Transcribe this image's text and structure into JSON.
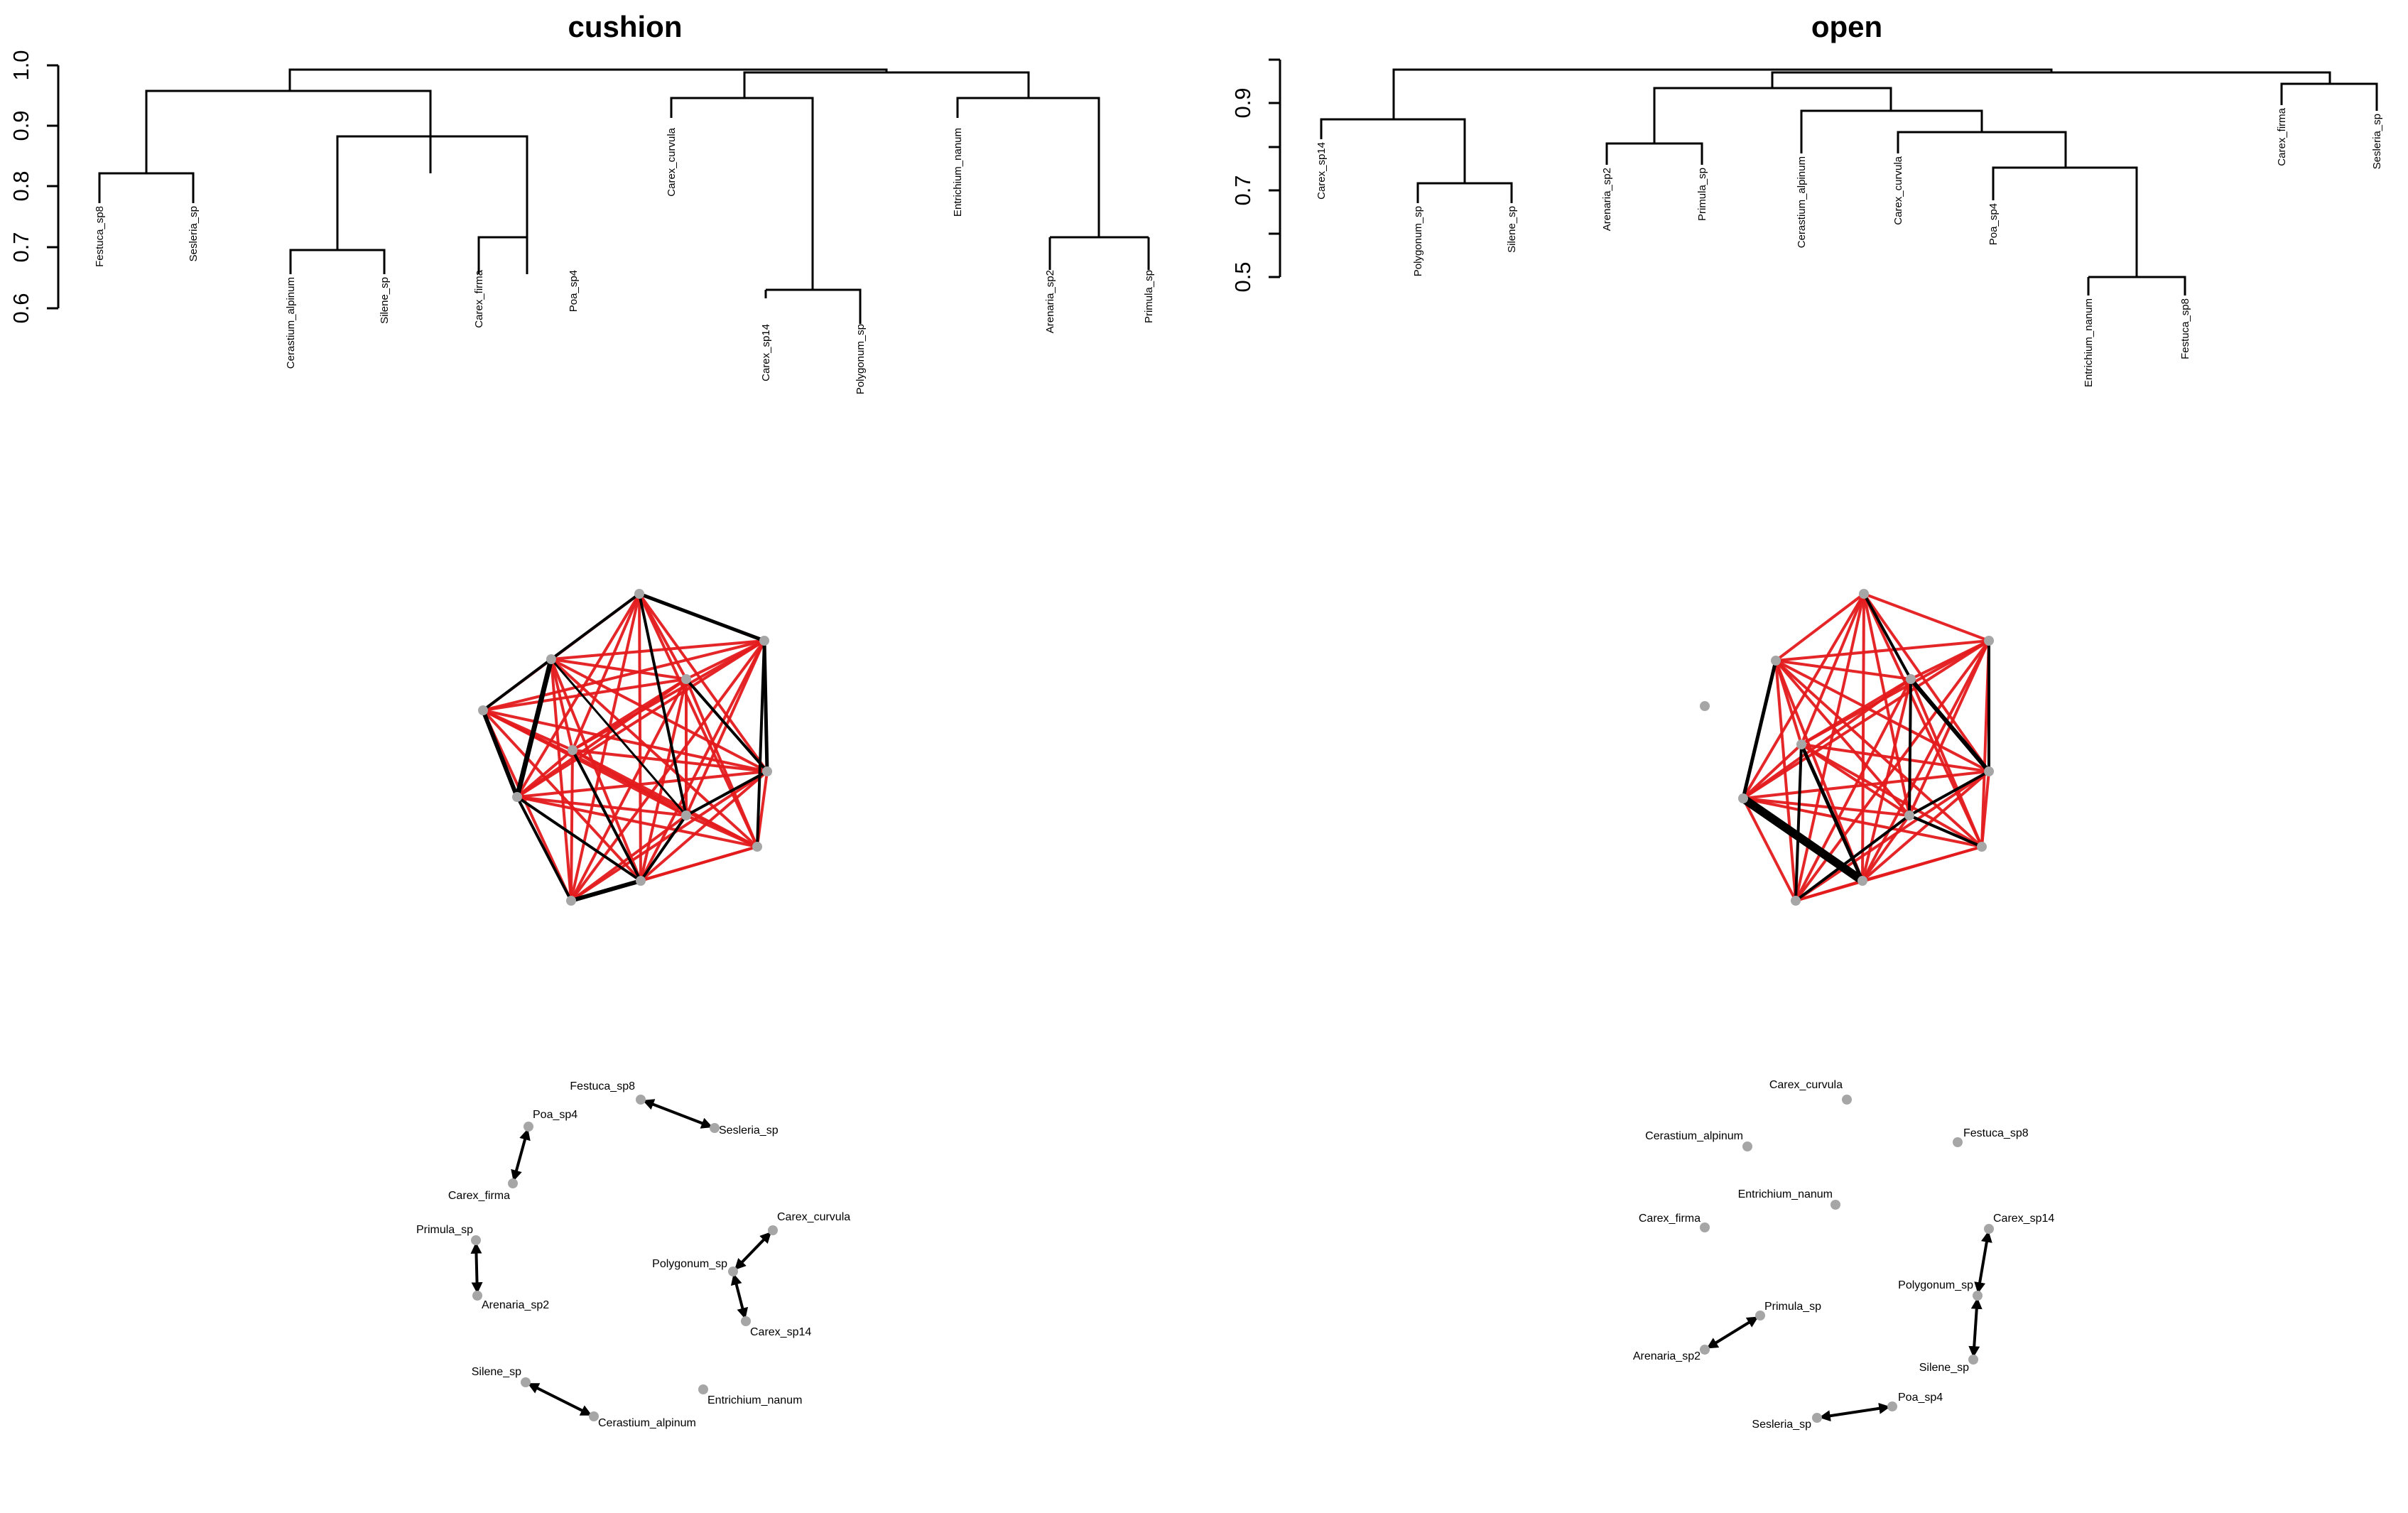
{
  "panels": [
    {
      "title": "cushion",
      "dendrogram": {
        "yaxis_ticks": [
          "0.6",
          "0.7",
          "0.8",
          "0.9",
          "1.0"
        ],
        "leaves": [
          "Festuca_sp8",
          "Sesleria_sp",
          "Cerastium_alpinum",
          "Silene_sp",
          "Carex_firma",
          "Poa_sp4",
          "Carex_curvula",
          "Carex_sp14",
          "Polygonum_sp",
          "Entrichium_nanum",
          "Arenaria_sp2",
          "Primula_sp"
        ]
      },
      "full_network": {
        "node_count": 12,
        "edge_colors": {
          "positive": "#e41a1c",
          "negative": "#000000"
        }
      },
      "pair_network": {
        "nodes": [
          "Festuca_sp8",
          "Sesleria_sp",
          "Poa_sp4",
          "Carex_firma",
          "Primula_sp",
          "Arenaria_sp2",
          "Carex_curvula",
          "Polygonum_sp",
          "Carex_sp14",
          "Silene_sp",
          "Cerastium_alpinum",
          "Entrichium_nanum"
        ],
        "edges": [
          [
            "Festuca_sp8",
            "Sesleria_sp"
          ],
          [
            "Poa_sp4",
            "Carex_firma"
          ],
          [
            "Primula_sp",
            "Arenaria_sp2"
          ],
          [
            "Carex_curvula",
            "Polygonum_sp"
          ],
          [
            "Polygonum_sp",
            "Carex_sp14"
          ],
          [
            "Silene_sp",
            "Cerastium_alpinum"
          ]
        ]
      }
    },
    {
      "title": "open",
      "dendrogram": {
        "yaxis_ticks": [
          "0.5",
          "0.7",
          "0.9"
        ],
        "leaves": [
          "Carex_sp14",
          "Polygonum_sp",
          "Silene_sp",
          "Arenaria_sp2",
          "Primula_sp",
          "Cerastium_alpinum",
          "Carex_curvula",
          "Poa_sp4",
          "Entrichium_nanum",
          "Festuca_sp8",
          "Carex_firma",
          "Sesleria_sp"
        ]
      },
      "full_network": {
        "node_count": 12,
        "edge_colors": {
          "positive": "#e41a1c",
          "negative": "#000000"
        }
      },
      "pair_network": {
        "nodes": [
          "Carex_curvula",
          "Cerastium_alpinum",
          "Festuca_sp8",
          "Entrichium_nanum",
          "Carex_firma",
          "Carex_sp14",
          "Primula_sp",
          "Polygonum_sp",
          "Arenaria_sp2",
          "Silene_sp",
          "Poa_sp4",
          "Sesleria_sp"
        ],
        "edges": [
          [
            "Primula_sp",
            "Arenaria_sp2"
          ],
          [
            "Carex_sp14",
            "Polygonum_sp"
          ],
          [
            "Polygonum_sp",
            "Silene_sp"
          ],
          [
            "Poa_sp4",
            "Sesleria_sp"
          ]
        ]
      }
    }
  ],
  "colors": {
    "node": "#a6a6a6",
    "line": "#000000",
    "positive_edge": "#e41a1c",
    "negative_edge": "#000000"
  }
}
